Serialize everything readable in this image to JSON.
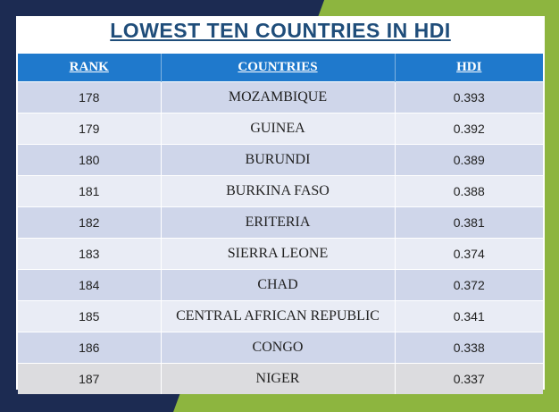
{
  "title": "LOWEST  TEN  COUNTRIES IN  HDI",
  "headers": {
    "rank": "RANK",
    "countries": "COUNTRIES",
    "hdi": "HDI"
  },
  "rows": [
    {
      "rank": "178",
      "country": "MOZAMBIQUE",
      "hdi": "0.393"
    },
    {
      "rank": "179",
      "country": "GUINEA",
      "hdi": "0.392"
    },
    {
      "rank": "180",
      "country": "BURUNDI",
      "hdi": "0.389"
    },
    {
      "rank": "181",
      "country": "BURKINA FASO",
      "hdi": "0.388"
    },
    {
      "rank": "182",
      "country": "ERITERIA",
      "hdi": "0.381"
    },
    {
      "rank": "183",
      "country": "SIERRA LEONE",
      "hdi": "0.374"
    },
    {
      "rank": "184",
      "country": "CHAD",
      "hdi": "0.372"
    },
    {
      "rank": "185",
      "country": "CENTRAL AFRICAN REPUBLIC",
      "hdi": "0.341"
    },
    {
      "rank": "186",
      "country": "CONGO",
      "hdi": "0.338"
    },
    {
      "rank": "187",
      "country": "NIGER",
      "hdi": "0.337"
    }
  ],
  "colors": {
    "background_navy": "#1c2b52",
    "background_green": "#8db53f",
    "header_blue": "#1f79cc",
    "title_blue": "#1f4d7a"
  }
}
